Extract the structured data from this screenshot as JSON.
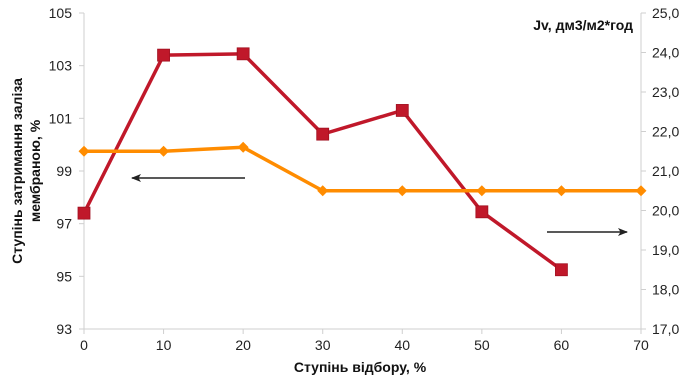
{
  "chart_data": {
    "type": "line",
    "x": [
      0,
      10,
      20,
      30,
      40,
      50,
      60,
      70
    ],
    "xlim": [
      0,
      70
    ],
    "x_ticks": [
      "0",
      "10",
      "20",
      "30",
      "40",
      "50",
      "60",
      "70"
    ],
    "xlabel": "Ступінь відбору, %",
    "left_axis": {
      "label_line1": "Ступінь затримання заліза",
      "label_line2": "мембраною, %",
      "ylim": [
        93,
        105
      ],
      "ticks": [
        "93",
        "95",
        "97",
        "99",
        "101",
        "103",
        "105"
      ]
    },
    "right_axis": {
      "label": "Jv, дм3/м2*год",
      "ylim": [
        17,
        25
      ],
      "ticks": [
        "17,0",
        "18,0",
        "19,0",
        "20,0",
        "21,0",
        "22,0",
        "23,0",
        "24,0",
        "25,0"
      ]
    },
    "series": [
      {
        "axis": "left",
        "color": "#c0182a",
        "marker": "square",
        "x": [
          0,
          10,
          20,
          30,
          40,
          50,
          60
        ],
        "values": [
          97.4,
          103.4,
          103.45,
          100.4,
          101.3,
          97.45,
          95.25
        ]
      },
      {
        "axis": "right",
        "color": "#ff8c00",
        "marker": "diamond",
        "x": [
          0,
          10,
          20,
          30,
          40,
          50,
          60,
          70
        ],
        "values": [
          21.5,
          21.5,
          21.6,
          20.5,
          20.5,
          20.5,
          20.5,
          20.5
        ]
      }
    ],
    "annotations": [
      {
        "type": "arrow",
        "direction": "left",
        "meaning": "series on left axis"
      },
      {
        "type": "arrow",
        "direction": "right",
        "meaning": "series on right axis"
      }
    ],
    "grid": false
  }
}
